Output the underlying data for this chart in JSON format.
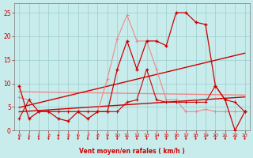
{
  "bg_color": "#c8ecec",
  "xlabel": "Vent moyen/en rafales ( km/h )",
  "x": [
    0,
    1,
    2,
    3,
    4,
    5,
    6,
    7,
    8,
    9,
    10,
    11,
    12,
    13,
    14,
    15,
    16,
    17,
    18,
    19,
    20,
    21,
    22,
    23
  ],
  "wind_avg": [
    2.5,
    6.5,
    4.0,
    4.0,
    4.0,
    4.0,
    4.0,
    4.0,
    4.0,
    4.0,
    4.0,
    6.0,
    6.5,
    13.0,
    6.5,
    6.0,
    6.0,
    6.0,
    6.0,
    6.0,
    9.5,
    6.5,
    6.0,
    4.0
  ],
  "wind_gust": [
    9.5,
    2.5,
    4.0,
    4.0,
    2.5,
    2.0,
    4.0,
    2.5,
    4.0,
    4.0,
    13.0,
    19.0,
    13.0,
    19.0,
    19.0,
    18.0,
    25.0,
    25.0,
    23.0,
    22.5,
    9.5,
    6.5,
    0.0,
    4.0
  ],
  "pink_line": [
    7.0,
    6.5,
    4.0,
    4.0,
    4.0,
    4.0,
    4.0,
    4.0,
    4.0,
    11.0,
    19.5,
    24.5,
    19.0,
    19.0,
    13.0,
    6.5,
    6.5,
    4.0,
    4.0,
    4.5,
    4.0,
    4.0,
    4.0,
    4.0
  ],
  "dark_red": "#cc0000",
  "light_pink": "#ee8888",
  "grid_color": "#99cccc",
  "yticks": [
    0,
    5,
    10,
    15,
    20,
    25
  ],
  "ylim": [
    0,
    27
  ],
  "xlim": [
    -0.5,
    23.5
  ]
}
